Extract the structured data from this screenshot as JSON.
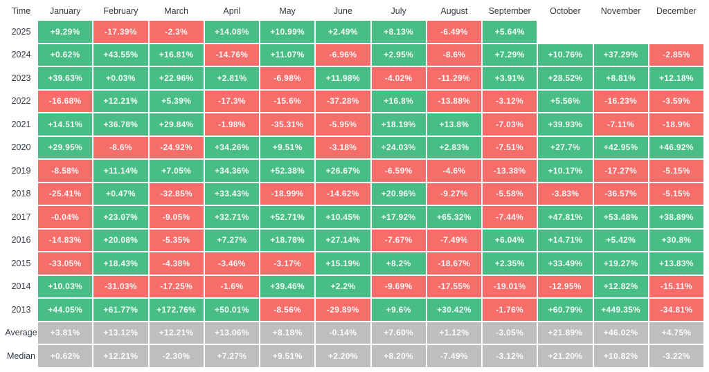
{
  "table": {
    "corner_label": "Time",
    "months": [
      "January",
      "February",
      "March",
      "April",
      "May",
      "June",
      "July",
      "August",
      "September",
      "October",
      "November",
      "December"
    ],
    "rows": [
      {
        "label": "2025",
        "type": "year",
        "values": [
          "+9.29%",
          "-17.39%",
          "-2.3%",
          "+14.08%",
          "+10.99%",
          "+2.49%",
          "+8.13%",
          "-6.49%",
          "+5.64%",
          null,
          null,
          null
        ]
      },
      {
        "label": "2024",
        "type": "year",
        "values": [
          "+0.62%",
          "+43.55%",
          "+16.81%",
          "-14.76%",
          "+11.07%",
          "-6.96%",
          "+2.95%",
          "-8.6%",
          "+7.29%",
          "+10.76%",
          "+37.29%",
          "-2.85%"
        ]
      },
      {
        "label": "2023",
        "type": "year",
        "values": [
          "+39.63%",
          "+0.03%",
          "+22.96%",
          "+2.81%",
          "-6.98%",
          "+11.98%",
          "-4.02%",
          "-11.29%",
          "+3.91%",
          "+28.52%",
          "+8.81%",
          "+12.18%"
        ]
      },
      {
        "label": "2022",
        "type": "year",
        "values": [
          "-16.68%",
          "+12.21%",
          "+5.39%",
          "-17.3%",
          "-15.6%",
          "-37.28%",
          "+16.8%",
          "-13.88%",
          "-3.12%",
          "+5.56%",
          "-16.23%",
          "-3.59%"
        ]
      },
      {
        "label": "2021",
        "type": "year",
        "values": [
          "+14.51%",
          "+36.78%",
          "+29.84%",
          "-1.98%",
          "-35.31%",
          "-5.95%",
          "+18.19%",
          "+13.8%",
          "-7.03%",
          "+39.93%",
          "-7.11%",
          "-18.9%"
        ]
      },
      {
        "label": "2020",
        "type": "year",
        "values": [
          "+29.95%",
          "-8.6%",
          "-24.92%",
          "+34.26%",
          "+9.51%",
          "-3.18%",
          "+24.03%",
          "+2.83%",
          "-7.51%",
          "+27.7%",
          "+42.95%",
          "+46.92%"
        ]
      },
      {
        "label": "2019",
        "type": "year",
        "values": [
          "-8.58%",
          "+11.14%",
          "+7.05%",
          "+34.36%",
          "+52.38%",
          "+26.67%",
          "-6.59%",
          "-4.6%",
          "-13.38%",
          "+10.17%",
          "-17.27%",
          "-5.15%"
        ]
      },
      {
        "label": "2018",
        "type": "year",
        "values": [
          "-25.41%",
          "+0.47%",
          "-32.85%",
          "+33.43%",
          "-18.99%",
          "-14.62%",
          "+20.96%",
          "-9.27%",
          "-5.58%",
          "-3.83%",
          "-36.57%",
          "-5.15%"
        ]
      },
      {
        "label": "2017",
        "type": "year",
        "values": [
          "-0.04%",
          "+23.07%",
          "-9.05%",
          "+32.71%",
          "+52.71%",
          "+10.45%",
          "+17.92%",
          "+65.32%",
          "-7.44%",
          "+47.81%",
          "+53.48%",
          "+38.89%"
        ]
      },
      {
        "label": "2016",
        "type": "year",
        "values": [
          "-14.83%",
          "+20.08%",
          "-5.35%",
          "+7.27%",
          "+18.78%",
          "+27.14%",
          "-7.67%",
          "-7.49%",
          "+6.04%",
          "+14.71%",
          "+5.42%",
          "+30.8%"
        ]
      },
      {
        "label": "2015",
        "type": "year",
        "values": [
          "-33.05%",
          "+18.43%",
          "-4.38%",
          "-3.46%",
          "-3.17%",
          "+15.19%",
          "+8.2%",
          "-18.67%",
          "+2.35%",
          "+33.49%",
          "+19.27%",
          "+13.83%"
        ]
      },
      {
        "label": "2014",
        "type": "year",
        "values": [
          "+10.03%",
          "-31.03%",
          "-17.25%",
          "-1.6%",
          "+39.46%",
          "+2.2%",
          "-9.69%",
          "-17.55%",
          "-19.01%",
          "-12.95%",
          "+12.82%",
          "-15.11%"
        ]
      },
      {
        "label": "2013",
        "type": "year",
        "values": [
          "+44.05%",
          "+61.77%",
          "+172.76%",
          "+50.01%",
          "-8.56%",
          "-29.89%",
          "+9.6%",
          "+30.42%",
          "-1.76%",
          "+60.79%",
          "+449.35%",
          "-34.81%"
        ]
      },
      {
        "label": "Average",
        "type": "summary",
        "values": [
          "+3.81%",
          "+13.12%",
          "+12.21%",
          "+13.06%",
          "+8.18%",
          "-0.14%",
          "+7.60%",
          "+1.12%",
          "-3.05%",
          "+21.89%",
          "+46.02%",
          "+4.75%"
        ]
      },
      {
        "label": "Median",
        "type": "summary",
        "values": [
          "+0.62%",
          "+12.21%",
          "-2.30%",
          "+7.27%",
          "+9.51%",
          "+2.20%",
          "+8.20%",
          "-7.49%",
          "-3.12%",
          "+21.20%",
          "+10.82%",
          "-3.22%"
        ]
      }
    ],
    "colors": {
      "positive": "#48BE86",
      "negative": "#F66D6A",
      "summary": "#BEBEBE",
      "cell_text": "rgba(255,255,255,0.93)",
      "label_text": "#353C45"
    }
  },
  "chart_data": {
    "type": "heatmap",
    "title": "",
    "columns": [
      "January",
      "February",
      "March",
      "April",
      "May",
      "June",
      "July",
      "August",
      "September",
      "October",
      "November",
      "December"
    ],
    "value_unit": "percent_monthly_return",
    "legend_position": "none",
    "grid": false,
    "color_rule": "positive=green, negative=red, summary-rows=gray",
    "rows": [
      {
        "label": "2025",
        "values": [
          9.29,
          -17.39,
          -2.3,
          14.08,
          10.99,
          2.49,
          8.13,
          -6.49,
          5.64,
          null,
          null,
          null
        ]
      },
      {
        "label": "2024",
        "values": [
          0.62,
          43.55,
          16.81,
          -14.76,
          11.07,
          -6.96,
          2.95,
          -8.6,
          7.29,
          10.76,
          37.29,
          -2.85
        ]
      },
      {
        "label": "2023",
        "values": [
          39.63,
          0.03,
          22.96,
          2.81,
          -6.98,
          11.98,
          -4.02,
          -11.29,
          3.91,
          28.52,
          8.81,
          12.18
        ]
      },
      {
        "label": "2022",
        "values": [
          -16.68,
          12.21,
          5.39,
          -17.3,
          -15.6,
          -37.28,
          16.8,
          -13.88,
          -3.12,
          5.56,
          -16.23,
          -3.59
        ]
      },
      {
        "label": "2021",
        "values": [
          14.51,
          36.78,
          29.84,
          -1.98,
          -35.31,
          -5.95,
          18.19,
          13.8,
          -7.03,
          39.93,
          -7.11,
          -18.9
        ]
      },
      {
        "label": "2020",
        "values": [
          29.95,
          -8.6,
          -24.92,
          34.26,
          9.51,
          -3.18,
          24.03,
          2.83,
          -7.51,
          27.7,
          42.95,
          46.92
        ]
      },
      {
        "label": "2019",
        "values": [
          -8.58,
          11.14,
          7.05,
          34.36,
          52.38,
          26.67,
          -6.59,
          -4.6,
          -13.38,
          10.17,
          -17.27,
          -5.15
        ]
      },
      {
        "label": "2018",
        "values": [
          -25.41,
          0.47,
          -32.85,
          33.43,
          -18.99,
          -14.62,
          20.96,
          -9.27,
          -5.58,
          -3.83,
          -36.57,
          -5.15
        ]
      },
      {
        "label": "2017",
        "values": [
          -0.04,
          23.07,
          -9.05,
          32.71,
          52.71,
          10.45,
          17.92,
          65.32,
          -7.44,
          47.81,
          53.48,
          38.89
        ]
      },
      {
        "label": "2016",
        "values": [
          -14.83,
          20.08,
          -5.35,
          7.27,
          18.78,
          27.14,
          -7.67,
          -7.49,
          6.04,
          14.71,
          5.42,
          30.8
        ]
      },
      {
        "label": "2015",
        "values": [
          -33.05,
          18.43,
          -4.38,
          -3.46,
          -3.17,
          15.19,
          8.2,
          -18.67,
          2.35,
          33.49,
          19.27,
          13.83
        ]
      },
      {
        "label": "2014",
        "values": [
          10.03,
          -31.03,
          -17.25,
          -1.6,
          39.46,
          2.2,
          -9.69,
          -17.55,
          -19.01,
          -12.95,
          12.82,
          -15.11
        ]
      },
      {
        "label": "2013",
        "values": [
          44.05,
          61.77,
          172.76,
          50.01,
          -8.56,
          -29.89,
          9.6,
          30.42,
          -1.76,
          60.79,
          449.35,
          -34.81
        ]
      },
      {
        "label": "Average",
        "values": [
          3.81,
          13.12,
          12.21,
          13.06,
          8.18,
          -0.14,
          7.6,
          1.12,
          -3.05,
          21.89,
          46.02,
          4.75
        ]
      },
      {
        "label": "Median",
        "values": [
          0.62,
          12.21,
          -2.3,
          7.27,
          9.51,
          2.2,
          8.2,
          -7.49,
          -3.12,
          21.2,
          10.82,
          -3.22
        ]
      }
    ]
  }
}
